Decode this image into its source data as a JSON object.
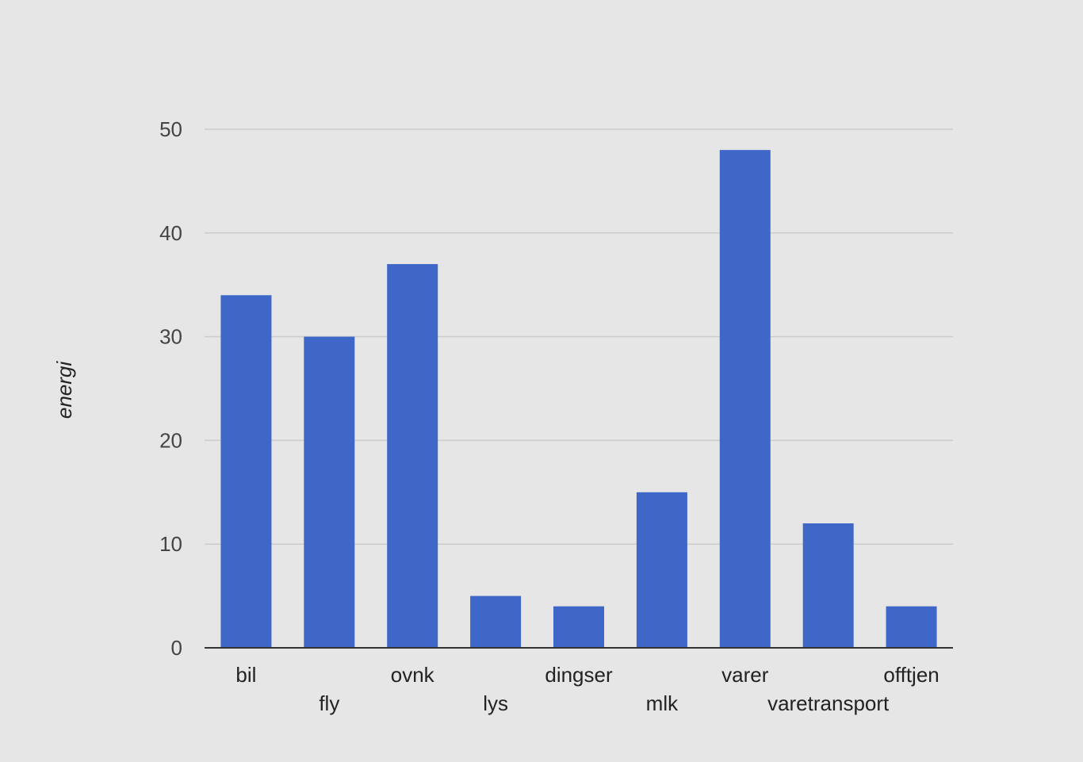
{
  "chart_data": {
    "type": "bar",
    "categories": [
      "bil",
      "fly",
      "ovnk",
      "lys",
      "dingser",
      "mlk",
      "varer",
      "varetransport",
      "offtjen"
    ],
    "values": [
      34,
      30,
      37,
      5,
      4,
      15,
      48,
      12,
      4
    ],
    "title": "",
    "xlabel": "",
    "ylabel": "energi",
    "ylim": [
      0,
      50
    ],
    "yticks": [
      0,
      10,
      20,
      30,
      40,
      50
    ],
    "grid": true,
    "legend": "none",
    "colors": {
      "bar": "#3e67c8",
      "grid": "#cccccc",
      "axis": "#333333",
      "background": "#e6e6e6"
    }
  }
}
